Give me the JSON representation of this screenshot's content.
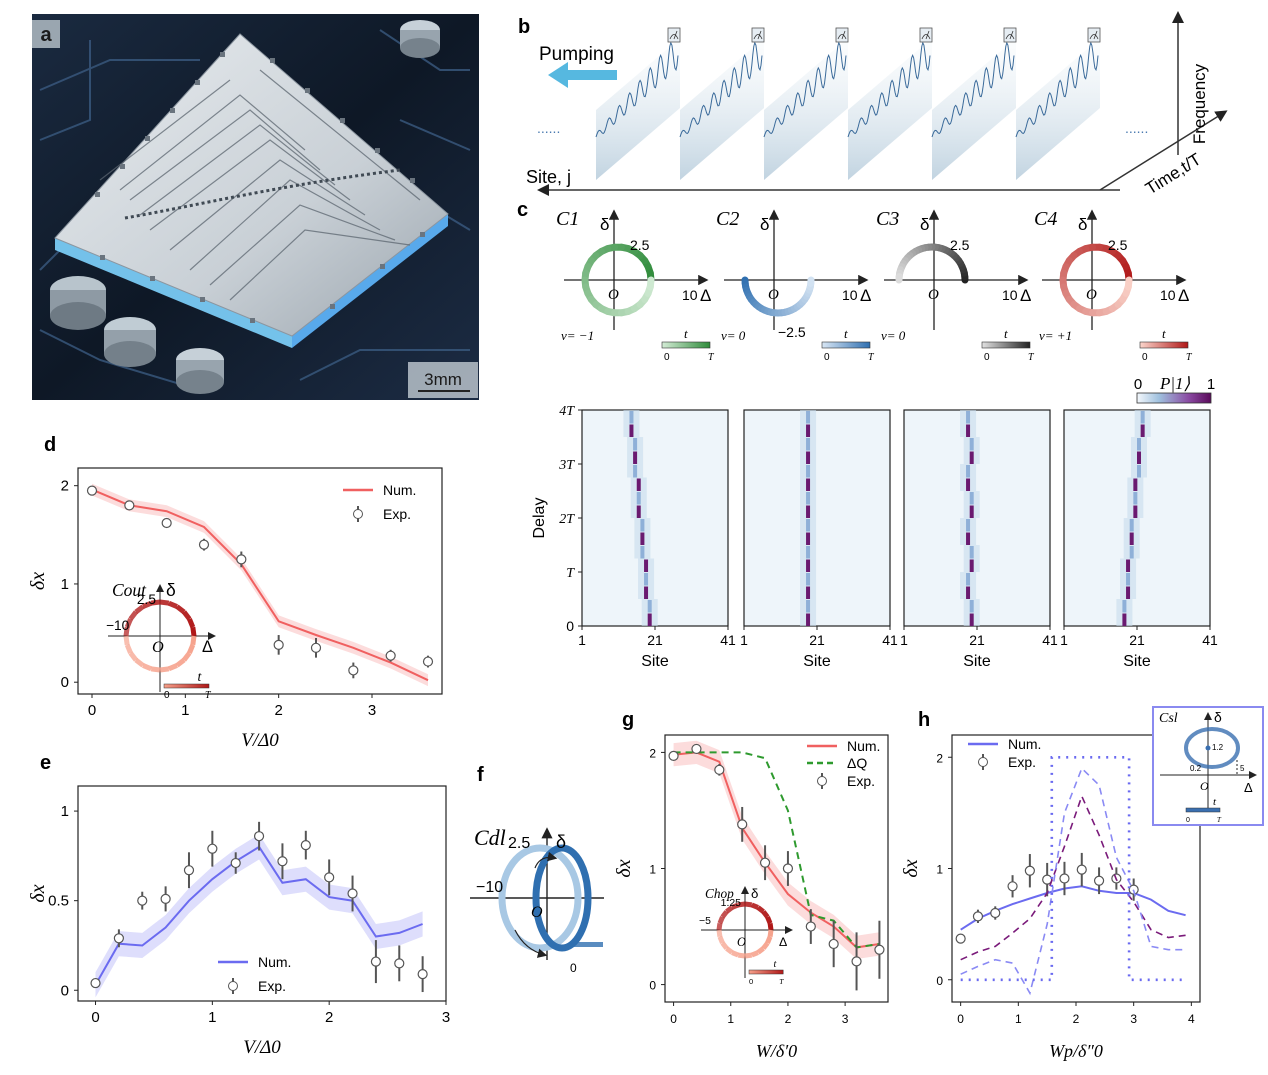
{
  "panel_labels": {
    "a": "a",
    "b": "b",
    "c": "c",
    "d": "d",
    "e": "e",
    "f": "f",
    "g": "g",
    "h": "h"
  },
  "colors": {
    "green": "#2e8b3a",
    "blue": "#2f6fb0",
    "black": "#222222",
    "red": "#b01818",
    "num_red": "#f06060",
    "num_blue": "#6b6bf0",
    "purple": "#7a1a7a",
    "dq_green": "#2e9a2e"
  },
  "panel_a": {
    "scale_bar": "3mm",
    "icon": "chip-photo"
  },
  "panel_b": {
    "pumping": "Pumping",
    "site": "Site, j",
    "time": "Time,t/T",
    "frequency": "Frequency",
    "dots": "......",
    "signal_count": 6
  },
  "panel_c": {
    "loops": [
      {
        "name": "C1",
        "sub": "1",
        "delta": "δ",
        "ymark": "2.5",
        "xmark": "10",
        "xaxis": "Δ",
        "origin": "O",
        "nu": "ν= −1",
        "tlabel": "t",
        "t0": "0",
        "tT": "T",
        "ymin": ""
      },
      {
        "name": "C2",
        "sub": "2",
        "delta": "δ",
        "ymark": "",
        "xmark": "10",
        "xaxis": "Δ",
        "origin": "O",
        "nu": "ν= 0",
        "tlabel": "t",
        "t0": "0",
        "tT": "T",
        "ymin": "−2.5"
      },
      {
        "name": "C3",
        "sub": "3",
        "delta": "δ",
        "ymark": "2.5",
        "xmark": "10",
        "xaxis": "Δ",
        "origin": "O",
        "nu": "ν= 0",
        "tlabel": "t",
        "t0": "0",
        "tT": "T",
        "ymin": ""
      },
      {
        "name": "C4",
        "sub": "4",
        "delta": "δ",
        "ymark": "2.5",
        "xmark": "10",
        "xaxis": "Δ",
        "origin": "O",
        "nu": "ν= +1",
        "tlabel": "t",
        "t0": "0",
        "tT": "T",
        "ymin": ""
      }
    ],
    "colorbar": {
      "label": "P|1⟩",
      "min": "0",
      "max": "1"
    },
    "heatmaps": {
      "ylabel": "Delay",
      "xlabel": "Site",
      "yticks": [
        "0",
        "T",
        "2T",
        "3T",
        "4T"
      ],
      "xticks": [
        "1",
        "21",
        "41"
      ],
      "tracks": [
        [
          19,
          19,
          18,
          18,
          18,
          17,
          17,
          17,
          16,
          16,
          16,
          15,
          15,
          15,
          14,
          14
        ],
        [
          18,
          18,
          18,
          18,
          18,
          18,
          18,
          18,
          18,
          18,
          18,
          18,
          18,
          18,
          18,
          18
        ],
        [
          19,
          19,
          18,
          18,
          19,
          19,
          18,
          18,
          19,
          19,
          18,
          18,
          19,
          19,
          18,
          18
        ],
        [
          17,
          17,
          18,
          18,
          18,
          19,
          19,
          19,
          20,
          20,
          20,
          21,
          21,
          21,
          22,
          22
        ]
      ]
    }
  },
  "panel_d": {
    "xlabel": "V/Δ0",
    "ylabel": "δx",
    "xticks": [
      "0",
      "1",
      "2",
      "3"
    ],
    "yticks": [
      "0",
      "1",
      "2"
    ],
    "legend_num": "Num.",
    "legend_exp": "Exp.",
    "inset": {
      "name": "Cout",
      "delta": "δ",
      "ymark": "2.5",
      "xmark": "−10",
      "xaxis": "Δ",
      "origin": "O",
      "tlabel": "t",
      "t0": "0",
      "tT": "T"
    }
  },
  "panel_e": {
    "xlabel": "V/Δ0",
    "ylabel": "δx",
    "xticks": [
      "0",
      "1",
      "2",
      "3"
    ],
    "yticks": [
      "0",
      "0.5",
      "1"
    ],
    "legend_num": "Num.",
    "legend_exp": "Exp."
  },
  "panel_f": {
    "name": "Cdl",
    "delta": "δ",
    "ymark": "2.5",
    "xmark": "−10",
    "origin": "O",
    "t0": "0"
  },
  "panel_g": {
    "xlabel": "W/δ′0",
    "ylabel": "δx",
    "xticks": [
      "0",
      "1",
      "2",
      "3"
    ],
    "yticks": [
      "0",
      "1",
      "2"
    ],
    "legend_num": "Num.",
    "legend_dq": "ΔQ",
    "legend_exp": "Exp.",
    "inset": {
      "name": "Chop",
      "delta": "δ",
      "ymark": "1.25",
      "xmark": "−5",
      "xaxis": "Δ",
      "origin": "O",
      "tlabel": "t",
      "t0": "0",
      "tT": "T"
    }
  },
  "panel_h": {
    "xlabel": "Wp/δ″0",
    "ylabel": "δx",
    "xticks": [
      "0",
      "1",
      "2",
      "3",
      "4"
    ],
    "yticks": [
      "0",
      "1",
      "2"
    ],
    "legend_num": "Num.",
    "legend_exp": "Exp.",
    "inset": {
      "name": "Csl",
      "delta": "δ",
      "ymark": "1.2",
      "xmark": "5",
      "lowmark": "0.2",
      "xaxis": "Δ",
      "origin": "O",
      "tlabel": "t",
      "t0": "0",
      "tT": "T"
    }
  },
  "chart_data": [
    {
      "type": "line",
      "id": "d",
      "title": "",
      "xlabel": "V/Δ0",
      "ylabel": "δx",
      "xlim": [
        -0.15,
        3.75
      ],
      "ylim": [
        -0.12,
        2.18
      ],
      "series": [
        {
          "name": "Num.",
          "x": [
            0,
            0.4,
            0.8,
            1.2,
            1.6,
            2.0,
            2.4,
            2.8,
            3.2,
            3.6
          ],
          "values": [
            1.96,
            1.8,
            1.74,
            1.58,
            1.2,
            0.62,
            0.48,
            0.35,
            0.2,
            0.02
          ],
          "band": 0.06
        },
        {
          "name": "Exp.",
          "x": [
            0,
            0.4,
            0.8,
            1.2,
            1.6,
            2.0,
            2.4,
            2.8,
            3.2,
            3.6
          ],
          "values": [
            1.95,
            1.8,
            1.62,
            1.4,
            1.25,
            0.38,
            0.35,
            0.12,
            0.27,
            0.21
          ],
          "err": [
            0.02,
            0.03,
            0.03,
            0.06,
            0.08,
            0.1,
            0.1,
            0.08,
            0.06,
            0.06
          ]
        }
      ]
    },
    {
      "type": "line",
      "id": "e",
      "title": "",
      "xlabel": "V/Δ0",
      "ylabel": "δx",
      "xlim": [
        -0.15,
        3.0
      ],
      "ylim": [
        -0.06,
        1.14
      ],
      "series": [
        {
          "name": "Num.",
          "x": [
            0,
            0.2,
            0.4,
            0.6,
            0.8,
            1.0,
            1.2,
            1.4,
            1.6,
            1.8,
            2.0,
            2.2,
            2.4,
            2.6,
            2.8
          ],
          "values": [
            0.03,
            0.26,
            0.25,
            0.35,
            0.5,
            0.62,
            0.72,
            0.8,
            0.6,
            0.62,
            0.52,
            0.5,
            0.3,
            0.32,
            0.37
          ],
          "band": 0.07
        },
        {
          "name": "Exp.",
          "x": [
            0,
            0.2,
            0.4,
            0.6,
            0.8,
            1.0,
            1.2,
            1.4,
            1.6,
            1.8,
            2.0,
            2.2,
            2.4,
            2.6,
            2.8
          ],
          "values": [
            0.04,
            0.29,
            0.5,
            0.51,
            0.67,
            0.79,
            0.71,
            0.86,
            0.72,
            0.81,
            0.63,
            0.54,
            0.16,
            0.15,
            0.09
          ],
          "err": [
            0.02,
            0.05,
            0.05,
            0.07,
            0.1,
            0.1,
            0.06,
            0.08,
            0.1,
            0.08,
            0.1,
            0.1,
            0.12,
            0.1,
            0.1
          ]
        }
      ]
    },
    {
      "type": "line",
      "id": "g",
      "title": "",
      "xlabel": "W/δ′0",
      "ylabel": "δx",
      "xlim": [
        -0.15,
        3.75
      ],
      "ylim": [
        -0.15,
        2.15
      ],
      "series": [
        {
          "name": "Num.",
          "x": [
            0,
            0.4,
            0.8,
            1.2,
            1.6,
            2.0,
            2.4,
            2.8,
            3.2,
            3.6
          ],
          "values": [
            1.98,
            2.0,
            1.92,
            1.35,
            1.05,
            0.78,
            0.62,
            0.5,
            0.32,
            0.35
          ],
          "band": 0.1
        },
        {
          "name": "ΔQ",
          "x": [
            0,
            0.4,
            0.8,
            1.2,
            1.6,
            2.0,
            2.2,
            2.4,
            2.8,
            3.2,
            3.6
          ],
          "values": [
            2.0,
            2.0,
            2.0,
            2.0,
            1.95,
            1.5,
            1.05,
            0.6,
            0.55,
            0.32,
            0.35
          ]
        },
        {
          "name": "Exp.",
          "x": [
            0,
            0.4,
            0.8,
            1.2,
            1.6,
            2.0,
            2.4,
            2.8,
            3.2,
            3.6
          ],
          "values": [
            1.97,
            2.03,
            1.85,
            1.38,
            1.05,
            1.0,
            0.5,
            0.35,
            0.2,
            0.3
          ],
          "err": [
            0.02,
            0.04,
            0.05,
            0.15,
            0.15,
            0.15,
            0.15,
            0.2,
            0.25,
            0.25
          ]
        }
      ]
    },
    {
      "type": "line",
      "id": "h",
      "title": "",
      "xlabel": "Wp/δ″0",
      "ylabel": "δx",
      "xlim": [
        -0.15,
        4.15
      ],
      "ylim": [
        -0.2,
        2.2
      ],
      "series": [
        {
          "name": "Num.",
          "x": [
            0,
            0.3,
            0.6,
            0.9,
            1.2,
            1.5,
            1.8,
            2.1,
            2.4,
            2.7,
            3.0,
            3.3,
            3.6,
            3.9
          ],
          "values": [
            0.45,
            0.55,
            0.62,
            0.68,
            0.73,
            0.78,
            0.82,
            0.84,
            0.8,
            0.78,
            0.78,
            0.72,
            0.62,
            0.58
          ]
        },
        {
          "name": "Exp.",
          "x": [
            0,
            0.3,
            0.6,
            0.9,
            1.2,
            1.5,
            1.8,
            2.1,
            2.4,
            2.7,
            3.0
          ],
          "values": [
            0.37,
            0.57,
            0.6,
            0.84,
            0.98,
            0.9,
            0.91,
            0.99,
            0.89,
            0.91,
            0.81
          ],
          "err": [
            0.02,
            0.06,
            0.06,
            0.1,
            0.15,
            0.15,
            0.15,
            0.15,
            0.12,
            0.1,
            0.1
          ]
        },
        {
          "name": "purple",
          "x": [
            0,
            0.3,
            0.6,
            0.9,
            1.2,
            1.5,
            1.8,
            2.1,
            2.4,
            2.7,
            3.0,
            3.3,
            3.6,
            3.9
          ],
          "values": [
            0.18,
            0.25,
            0.3,
            0.42,
            0.55,
            0.78,
            1.2,
            1.65,
            1.3,
            0.9,
            0.7,
            0.45,
            0.38,
            0.4
          ]
        },
        {
          "name": "dashed-blue",
          "x": [
            0,
            0.3,
            0.6,
            0.9,
            1.2,
            1.5,
            1.8,
            2.1,
            2.4,
            2.7,
            3.0,
            3.3,
            3.6,
            3.9
          ],
          "values": [
            0.05,
            0.12,
            0.18,
            0.15,
            -0.12,
            0.5,
            1.5,
            1.9,
            1.75,
            1.1,
            0.8,
            0.3,
            0.27,
            0.27
          ]
        },
        {
          "name": "dotted-blue",
          "x": [
            0,
            1.58,
            1.58,
            2.92,
            2.92,
            3.9
          ],
          "values": [
            0,
            0,
            2.0,
            2.0,
            0,
            0
          ]
        }
      ]
    }
  ]
}
